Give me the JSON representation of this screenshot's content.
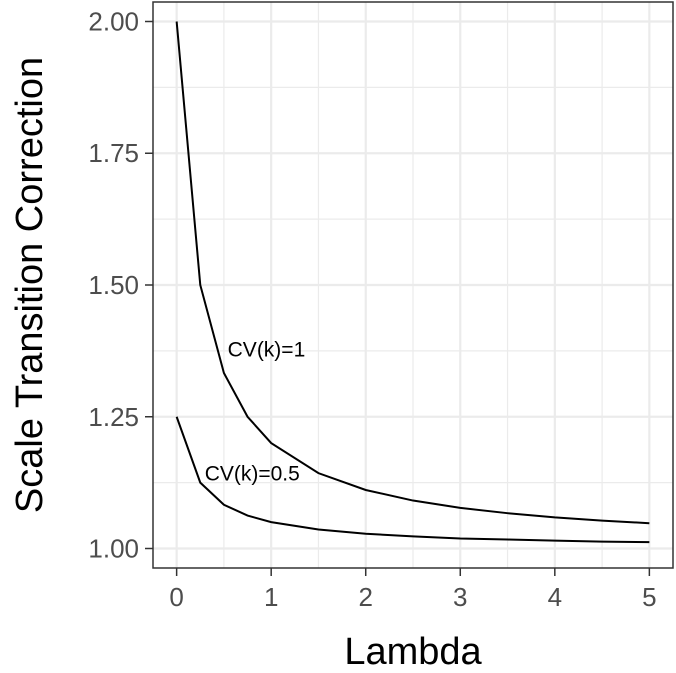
{
  "chart_data": {
    "type": "line",
    "xlabel": "Lambda",
    "ylabel": "Scale Transition Correction",
    "xlim": [
      -0.25,
      5.25
    ],
    "ylim": [
      0.963,
      2.037
    ],
    "x_ticks": [
      0,
      1,
      2,
      3,
      4,
      5
    ],
    "y_ticks": [
      1.0,
      1.25,
      1.5,
      1.75,
      2.0
    ],
    "x_tick_labels": [
      "0",
      "1",
      "2",
      "3",
      "4",
      "5"
    ],
    "y_tick_labels": [
      "1.00",
      "1.25",
      "1.50",
      "1.75",
      "2.00"
    ],
    "grid": true,
    "legend": "none",
    "series": [
      {
        "x": [
          0,
          0.25,
          0.5,
          0.75,
          1,
          1.5,
          2,
          2.5,
          3,
          3.5,
          4,
          4.5,
          5
        ],
        "y": [
          2.0,
          1.5,
          1.333,
          1.25,
          1.2,
          1.143,
          1.111,
          1.091,
          1.077,
          1.067,
          1.059,
          1.053,
          1.048
        ]
      },
      {
        "x": [
          0,
          0.25,
          0.5,
          0.75,
          1,
          1.5,
          2,
          2.5,
          3,
          3.5,
          4,
          4.5,
          5
        ],
        "y": [
          1.25,
          1.125,
          1.083,
          1.0625,
          1.05,
          1.036,
          1.028,
          1.023,
          1.019,
          1.017,
          1.015,
          1.013,
          1.012
        ]
      }
    ],
    "annotations": [
      {
        "text": "CV(k)=1",
        "x": 0.95,
        "y": 1.375
      },
      {
        "text": "CV(k)=0.5",
        "x": 0.8,
        "y": 1.14
      }
    ],
    "colors": {
      "panel_border": "#333333",
      "grid": "#ebebeb",
      "line": "#000000",
      "tick_text": "#4d4d4d"
    }
  }
}
